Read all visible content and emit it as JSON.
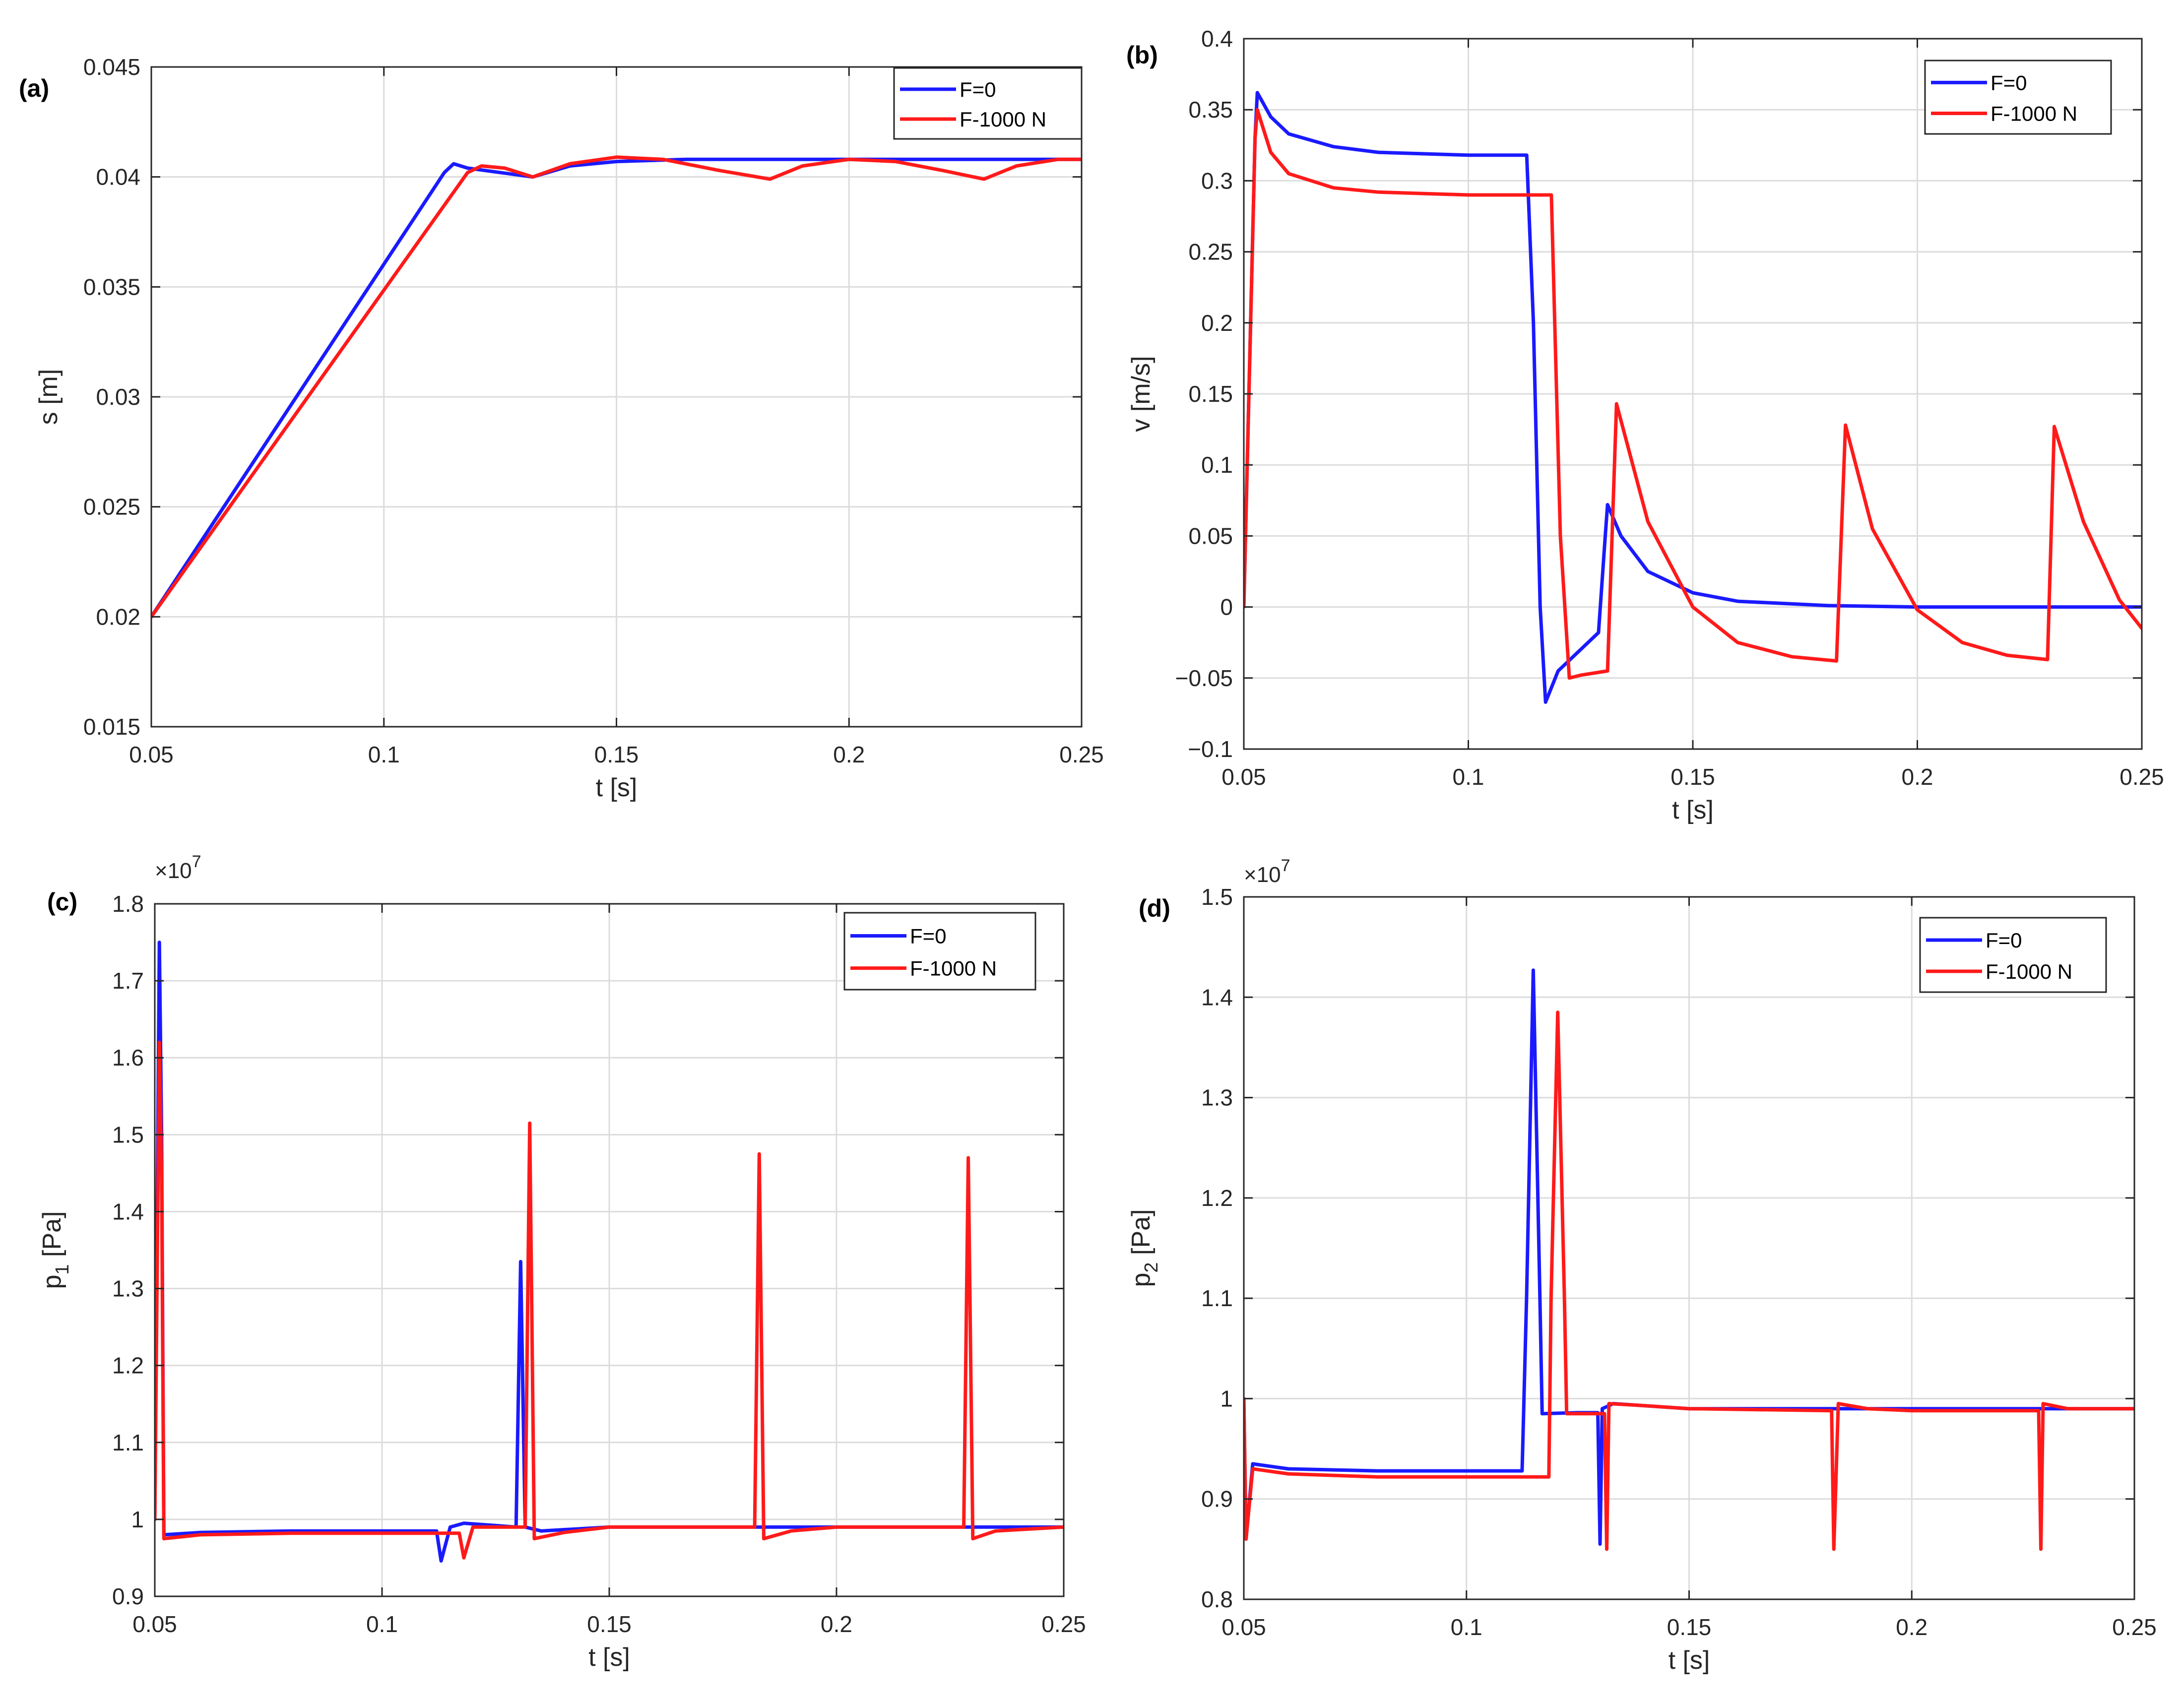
{
  "figure": {
    "colors": {
      "F0": "#1a1aff",
      "F1000": "#ff1a1a",
      "grid": "#dcdcdc",
      "axis": "#262626"
    }
  },
  "chart_data": [
    {
      "id": "a",
      "panel_label": "(a)",
      "type": "line",
      "xlabel": "t [s]",
      "ylabel": "s [m]",
      "xlim": [
        0.05,
        0.25
      ],
      "ylim": [
        0.015,
        0.045
      ],
      "xticks": [
        0.05,
        0.1,
        0.15,
        0.2,
        0.25
      ],
      "xtick_labels": [
        "0.05",
        "0.1",
        "0.15",
        "0.2",
        "0.25"
      ],
      "yticks": [
        0.015,
        0.02,
        0.025,
        0.03,
        0.035,
        0.04,
        0.045
      ],
      "ytick_labels": [
        "0.015",
        "0.02",
        "0.025",
        "0.03",
        "0.035",
        "0.04",
        "0.045"
      ],
      "exponent": "",
      "grid": true,
      "legend": "top-right",
      "series": [
        {
          "name": "F=0",
          "color": "#1a1aff",
          "points": [
            [
              0.05,
              0.02
            ],
            [
              0.113,
              0.0402
            ],
            [
              0.115,
              0.0406
            ],
            [
              0.118,
              0.0404
            ],
            [
              0.125,
              0.0402
            ],
            [
              0.132,
              0.04
            ],
            [
              0.14,
              0.0405
            ],
            [
              0.15,
              0.0407
            ],
            [
              0.165,
              0.0408
            ],
            [
              0.25,
              0.0408
            ]
          ]
        },
        {
          "name": "F-1000 N",
          "color": "#ff1a1a",
          "points": [
            [
              0.05,
              0.02
            ],
            [
              0.118,
              0.0402
            ],
            [
              0.121,
              0.0405
            ],
            [
              0.126,
              0.0404
            ],
            [
              0.132,
              0.04
            ],
            [
              0.14,
              0.0406
            ],
            [
              0.15,
              0.0409
            ],
            [
              0.16,
              0.0408
            ],
            [
              0.172,
              0.0403
            ],
            [
              0.183,
              0.0399
            ],
            [
              0.19,
              0.0405
            ],
            [
              0.2,
              0.0408
            ],
            [
              0.21,
              0.0407
            ],
            [
              0.22,
              0.0403
            ],
            [
              0.229,
              0.0399
            ],
            [
              0.236,
              0.0405
            ],
            [
              0.245,
              0.0408
            ],
            [
              0.25,
              0.0408
            ]
          ]
        }
      ]
    },
    {
      "id": "b",
      "panel_label": "(b)",
      "type": "line",
      "xlabel": "t [s]",
      "ylabel": "v [m/s]",
      "xlim": [
        0.05,
        0.25
      ],
      "ylim": [
        -0.1,
        0.4
      ],
      "xticks": [
        0.05,
        0.1,
        0.15,
        0.2,
        0.25
      ],
      "xtick_labels": [
        "0.05",
        "0.1",
        "0.15",
        "0.2",
        "0.25"
      ],
      "yticks": [
        -0.1,
        -0.05,
        0,
        0.05,
        0.1,
        0.15,
        0.2,
        0.25,
        0.3,
        0.35,
        0.4
      ],
      "ytick_labels": [
        "−0.1",
        "−0.05",
        "0",
        "0.05",
        "0.1",
        "0.15",
        "0.2",
        "0.25",
        "0.3",
        "0.35",
        "0.4"
      ],
      "exponent": "",
      "grid": true,
      "legend": "top-right",
      "series": [
        {
          "name": "F=0",
          "color": "#1a1aff",
          "points": [
            [
              0.05,
              0.0
            ],
            [
              0.0525,
              0.33
            ],
            [
              0.053,
              0.362
            ],
            [
              0.056,
              0.345
            ],
            [
              0.06,
              0.333
            ],
            [
              0.07,
              0.324
            ],
            [
              0.08,
              0.32
            ],
            [
              0.1,
              0.318
            ],
            [
              0.113,
              0.318
            ],
            [
              0.1145,
              0.2
            ],
            [
              0.116,
              0.0
            ],
            [
              0.1172,
              -0.067
            ],
            [
              0.12,
              -0.045
            ],
            [
              0.125,
              -0.03
            ],
            [
              0.129,
              -0.018
            ],
            [
              0.1305,
              0.05
            ],
            [
              0.131,
              0.072
            ],
            [
              0.134,
              0.05
            ],
            [
              0.14,
              0.025
            ],
            [
              0.15,
              0.01
            ],
            [
              0.16,
              0.004
            ],
            [
              0.18,
              0.001
            ],
            [
              0.2,
              0.0
            ],
            [
              0.25,
              0.0
            ]
          ]
        },
        {
          "name": "F-1000 N",
          "color": "#ff1a1a",
          "points": [
            [
              0.05,
              0.0
            ],
            [
              0.0525,
              0.33
            ],
            [
              0.053,
              0.35
            ],
            [
              0.056,
              0.32
            ],
            [
              0.06,
              0.305
            ],
            [
              0.07,
              0.295
            ],
            [
              0.08,
              0.292
            ],
            [
              0.1,
              0.29
            ],
            [
              0.1185,
              0.29
            ],
            [
              0.1205,
              0.05
            ],
            [
              0.1225,
              -0.05
            ],
            [
              0.125,
              -0.048
            ],
            [
              0.131,
              -0.045
            ],
            [
              0.133,
              0.143
            ],
            [
              0.14,
              0.06
            ],
            [
              0.15,
              0.0
            ],
            [
              0.16,
              -0.025
            ],
            [
              0.172,
              -0.035
            ],
            [
              0.182,
              -0.038
            ],
            [
              0.184,
              0.128
            ],
            [
              0.19,
              0.055
            ],
            [
              0.2,
              -0.002
            ],
            [
              0.21,
              -0.025
            ],
            [
              0.22,
              -0.034
            ],
            [
              0.229,
              -0.037
            ],
            [
              0.2305,
              0.127
            ],
            [
              0.237,
              0.06
            ],
            [
              0.245,
              0.005
            ],
            [
              0.25,
              -0.015
            ]
          ]
        }
      ]
    },
    {
      "id": "c",
      "panel_label": "(c)",
      "type": "line",
      "xlabel": "t [s]",
      "ylabel": "p",
      "ylabel_sub": "1",
      "ylabel_unit": " [Pa]",
      "xlim": [
        0.05,
        0.25
      ],
      "ylim": [
        0.9,
        1.8
      ],
      "xticks": [
        0.05,
        0.1,
        0.15,
        0.2,
        0.25
      ],
      "xtick_labels": [
        "0.05",
        "0.1",
        "0.15",
        "0.2",
        "0.25"
      ],
      "yticks": [
        0.9,
        1.0,
        1.1,
        1.2,
        1.3,
        1.4,
        1.5,
        1.6,
        1.7,
        1.8
      ],
      "ytick_labels": [
        "0.9",
        "1",
        "1.1",
        "1.2",
        "1.3",
        "1.4",
        "1.5",
        "1.6",
        "1.7",
        "1.8"
      ],
      "exponent": "×10",
      "exponent_power": "7",
      "grid": true,
      "legend": "top-right",
      "series": [
        {
          "name": "F=0",
          "color": "#1a1aff",
          "points": [
            [
              0.05,
              1.0
            ],
            [
              0.051,
              1.75
            ],
            [
              0.0515,
              1.5
            ],
            [
              0.052,
              0.98
            ],
            [
              0.06,
              0.983
            ],
            [
              0.08,
              0.985
            ],
            [
              0.1,
              0.985
            ],
            [
              0.112,
              0.985
            ],
            [
              0.113,
              0.946
            ],
            [
              0.115,
              0.99
            ],
            [
              0.118,
              0.995
            ],
            [
              0.125,
              0.992
            ],
            [
              0.1295,
              0.99
            ],
            [
              0.1305,
              1.335
            ],
            [
              0.1315,
              0.99
            ],
            [
              0.135,
              0.985
            ],
            [
              0.15,
              0.99
            ],
            [
              0.2,
              0.99
            ],
            [
              0.25,
              0.99
            ]
          ]
        },
        {
          "name": "F-1000 N",
          "color": "#ff1a1a",
          "points": [
            [
              0.05,
              1.0
            ],
            [
              0.051,
              1.62
            ],
            [
              0.0515,
              1.45
            ],
            [
              0.052,
              0.975
            ],
            [
              0.06,
              0.98
            ],
            [
              0.08,
              0.982
            ],
            [
              0.1,
              0.982
            ],
            [
              0.117,
              0.982
            ],
            [
              0.118,
              0.95
            ],
            [
              0.12,
              0.99
            ],
            [
              0.125,
              0.99
            ],
            [
              0.1315,
              0.99
            ],
            [
              0.1325,
              1.515
            ],
            [
              0.1335,
              0.975
            ],
            [
              0.14,
              0.983
            ],
            [
              0.15,
              0.99
            ],
            [
              0.17,
              0.99
            ],
            [
              0.182,
              0.99
            ],
            [
              0.183,
              1.475
            ],
            [
              0.184,
              0.975
            ],
            [
              0.19,
              0.985
            ],
            [
              0.2,
              0.99
            ],
            [
              0.228,
              0.99
            ],
            [
              0.229,
              1.47
            ],
            [
              0.23,
              0.975
            ],
            [
              0.235,
              0.985
            ],
            [
              0.25,
              0.99
            ]
          ]
        }
      ]
    },
    {
      "id": "d",
      "panel_label": "(d)",
      "type": "line",
      "xlabel": "t [s]",
      "ylabel": "p",
      "ylabel_sub": "2",
      "ylabel_unit": " [Pa]",
      "xlim": [
        0.05,
        0.25
      ],
      "ylim": [
        0.8,
        1.5
      ],
      "xticks": [
        0.05,
        0.1,
        0.15,
        0.2,
        0.25
      ],
      "xtick_labels": [
        "0.05",
        "0.1",
        "0.15",
        "0.2",
        "0.25"
      ],
      "yticks": [
        0.8,
        0.9,
        1.0,
        1.1,
        1.2,
        1.3,
        1.4,
        1.5
      ],
      "ytick_labels": [
        "0.8",
        "0.9",
        "1",
        "1.1",
        "1.2",
        "1.3",
        "1.4",
        "1.5"
      ],
      "exponent": "×10",
      "exponent_power": "7",
      "grid": true,
      "legend": "top-right",
      "series": [
        {
          "name": "F=0",
          "color": "#1a1aff",
          "points": [
            [
              0.05,
              1.0
            ],
            [
              0.0505,
              0.86
            ],
            [
              0.052,
              0.935
            ],
            [
              0.06,
              0.93
            ],
            [
              0.08,
              0.928
            ],
            [
              0.1,
              0.928
            ],
            [
              0.1125,
              0.928
            ],
            [
              0.1135,
              1.1
            ],
            [
              0.115,
              1.427
            ],
            [
              0.1165,
              1.1
            ],
            [
              0.117,
              0.985
            ],
            [
              0.125,
              0.986
            ],
            [
              0.1295,
              0.986
            ],
            [
              0.13,
              0.855
            ],
            [
              0.1305,
              0.99
            ],
            [
              0.133,
              0.995
            ],
            [
              0.15,
              0.99
            ],
            [
              0.2,
              0.99
            ],
            [
              0.25,
              0.99
            ]
          ]
        },
        {
          "name": "F-1000 N",
          "color": "#ff1a1a",
          "points": [
            [
              0.05,
              1.0
            ],
            [
              0.0505,
              0.86
            ],
            [
              0.052,
              0.93
            ],
            [
              0.06,
              0.925
            ],
            [
              0.08,
              0.922
            ],
            [
              0.1,
              0.922
            ],
            [
              0.1185,
              0.922
            ],
            [
              0.119,
              1.1
            ],
            [
              0.1205,
              1.385
            ],
            [
              0.122,
              1.1
            ],
            [
              0.1225,
              0.985
            ],
            [
              0.131,
              0.985
            ],
            [
              0.1315,
              0.85
            ],
            [
              0.132,
              0.995
            ],
            [
              0.14,
              0.993
            ],
            [
              0.15,
              0.99
            ],
            [
              0.182,
              0.988
            ],
            [
              0.1825,
              0.85
            ],
            [
              0.1835,
              0.995
            ],
            [
              0.19,
              0.99
            ],
            [
              0.2,
              0.988
            ],
            [
              0.2285,
              0.988
            ],
            [
              0.229,
              0.85
            ],
            [
              0.2295,
              0.995
            ],
            [
              0.235,
              0.99
            ],
            [
              0.25,
              0.99
            ]
          ]
        }
      ]
    }
  ]
}
